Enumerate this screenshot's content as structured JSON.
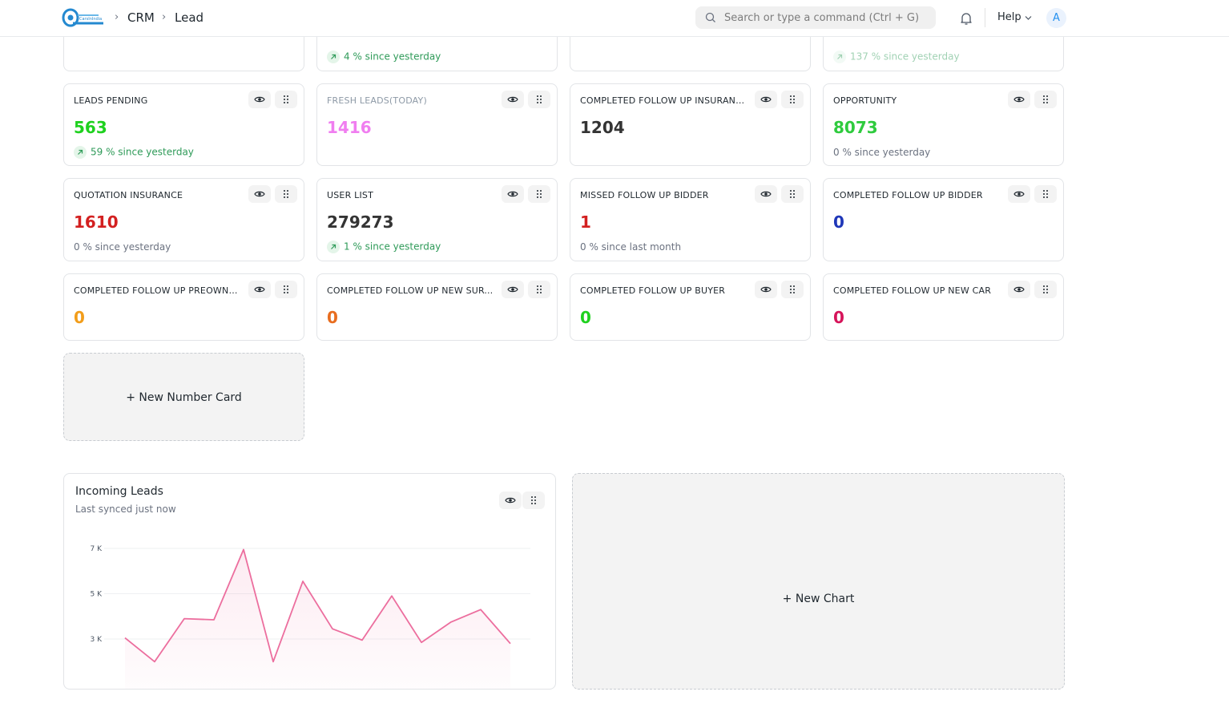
{
  "navbar": {
    "breadcrumbs": [
      "CRM",
      "Lead"
    ],
    "search_placeholder": "Search or type a command (Ctrl + G)",
    "help_label": "Help",
    "avatar_letter": "A",
    "icons": [
      "logo",
      "chevron-right-icon",
      "search-icon",
      "bell-icon",
      "chevron-down-icon"
    ]
  },
  "partial_cards": [
    {
      "trend": "4 % since yesterday"
    },
    {
      "trend": "137 % since yesterday"
    }
  ],
  "cards": [
    {
      "title": "LEADS PENDING",
      "value": "563",
      "color": "#1fd11f",
      "trend": "59 % since yesterday"
    },
    {
      "title": "FRESH LEADS(TODAY)",
      "value": "1416",
      "color": "#f07ef0",
      "title_muted": true
    },
    {
      "title": "COMPLETED FOLLOW UP INSURANCE",
      "value": "1204",
      "color": "#343434"
    },
    {
      "title": "OPPORTUNITY",
      "value": "8073",
      "color": "#2fcb3e",
      "sub": "0 % since yesterday"
    },
    {
      "title": "QUOTATION INSURANCE",
      "value": "1610",
      "color": "#d32020",
      "sub": "0 % since yesterday"
    },
    {
      "title": "USER LIST",
      "value": "279273",
      "color": "#343434",
      "trend": "1 % since yesterday"
    },
    {
      "title": "MISSED FOLLOW UP BIDDER",
      "value": "1",
      "color": "#d32020",
      "sub": "0 % since last month"
    },
    {
      "title": "COMPLETED FOLLOW UP BIDDER",
      "value": "0",
      "color": "#1f37b8"
    },
    {
      "title": "COMPLETED FOLLOW UP PREOWNED",
      "value": "0",
      "color": "#f29d1a"
    },
    {
      "title": "COMPLETED FOLLOW UP NEW SURVEY",
      "value": "0",
      "color": "#e86d1f"
    },
    {
      "title": "COMPLETED FOLLOW UP BUYER",
      "value": "0",
      "color": "#1fd11f"
    },
    {
      "title": "COMPLETED FOLLOW UP NEW CAR",
      "value": "0",
      "color": "#d6145a"
    }
  ],
  "new_number_card_label": "+ New Number Card",
  "new_chart_label": "+ New Chart",
  "chart": {
    "title": "Incoming Leads",
    "subtitle": "Last synced just now"
  },
  "chart_data": {
    "type": "line",
    "title": "Incoming Leads",
    "y_tick_labels": [
      "7 K",
      "5 K",
      "3 K"
    ],
    "y_ticks": [
      7000,
      5000,
      3000
    ],
    "values": [
      3050,
      2000,
      3900,
      3850,
      6950,
      2000,
      5550,
      3450,
      2950,
      4900,
      2850,
      3750,
      4300,
      2800
    ],
    "color": "#ec6e9e",
    "grid": true,
    "ylim": [
      1000,
      7000
    ]
  }
}
